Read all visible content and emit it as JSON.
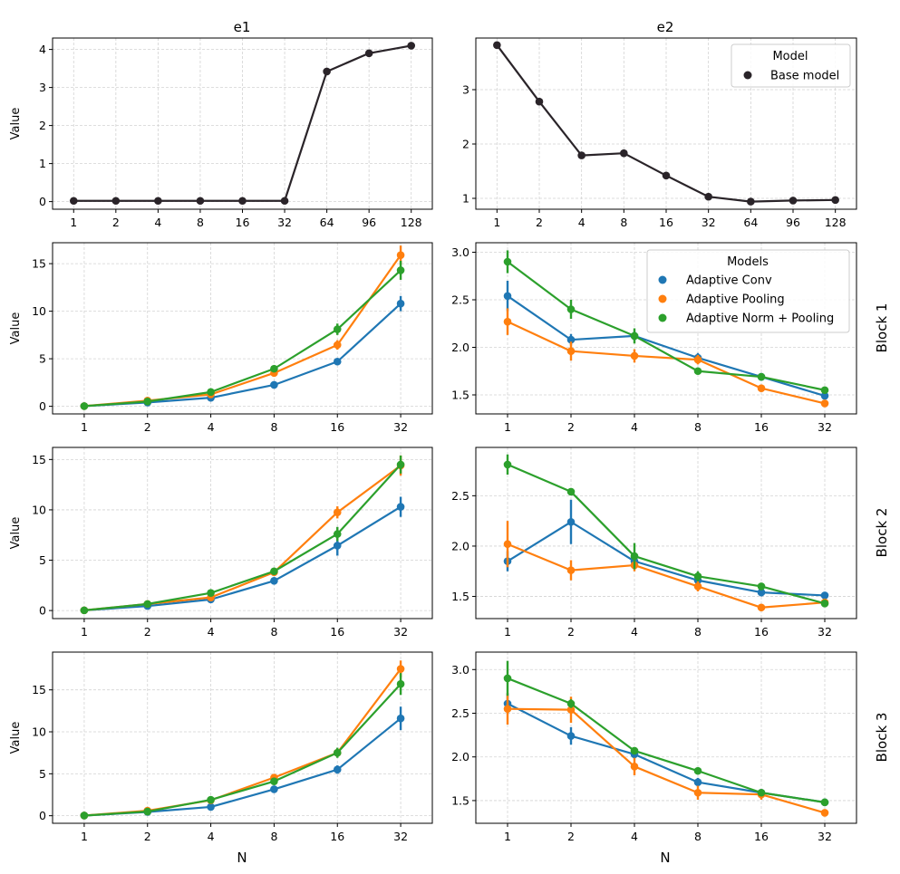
{
  "colors": {
    "base": "#2a2429",
    "adaptive_conv": "#1f77b4",
    "adaptive_pooling": "#ff7f0e",
    "adaptive_norm_pooling": "#2ca02c"
  },
  "figure": {
    "col_titles": [
      "e1",
      "e2"
    ],
    "row_labels": [
      "Block 1",
      "Block 2",
      "Block 3"
    ],
    "xlabel": "N",
    "ylabel": "Value"
  },
  "chart_data": [
    {
      "id": "top-e1",
      "type": "line",
      "title": "e1",
      "xlabel": "",
      "ylabel": "Value",
      "categories": [
        "1",
        "2",
        "4",
        "8",
        "16",
        "32",
        "64",
        "96",
        "128"
      ],
      "ylim": [
        -0.2,
        4.3
      ],
      "yticks": [
        0,
        1,
        2,
        3,
        4
      ],
      "series": [
        {
          "name": "Base model",
          "color": "#2a2429",
          "values": [
            0.02,
            0.02,
            0.02,
            0.02,
            0.02,
            0.02,
            3.42,
            3.9,
            4.1
          ],
          "err": [
            0.02,
            0.02,
            0.02,
            0.02,
            0.02,
            0.02,
            0.05,
            0.05,
            0.04
          ]
        }
      ]
    },
    {
      "id": "top-e2",
      "type": "line",
      "title": "e2",
      "xlabel": "",
      "ylabel": "",
      "categories": [
        "1",
        "2",
        "4",
        "8",
        "16",
        "32",
        "64",
        "96",
        "128"
      ],
      "ylim": [
        0.8,
        3.95
      ],
      "yticks": [
        1,
        2,
        3
      ],
      "legend": {
        "title": "Model",
        "position": "top-right"
      },
      "series": [
        {
          "name": "Base model",
          "color": "#2a2429",
          "values": [
            3.82,
            2.78,
            1.79,
            1.83,
            1.42,
            1.03,
            0.94,
            0.96,
            0.97
          ],
          "err": [
            0.04,
            0.04,
            0.03,
            0.03,
            0.03,
            0.03,
            0.03,
            0.03,
            0.03
          ]
        }
      ]
    },
    {
      "id": "block1-e1",
      "type": "line",
      "xlabel": "",
      "ylabel": "Value",
      "categories": [
        "1",
        "2",
        "4",
        "8",
        "16",
        "32"
      ],
      "ylim": [
        -0.8,
        17.2
      ],
      "yticks": [
        0,
        5,
        10,
        15
      ],
      "series": [
        {
          "name": "Adaptive Conv",
          "color": "#1f77b4",
          "values": [
            0.02,
            0.4,
            0.9,
            2.25,
            4.7,
            10.8
          ],
          "err": [
            0.02,
            0.05,
            0.1,
            0.2,
            0.3,
            0.8
          ]
        },
        {
          "name": "Adaptive Pooling",
          "color": "#ff7f0e",
          "values": [
            0.02,
            0.6,
            1.25,
            3.5,
            6.45,
            15.9
          ],
          "err": [
            0.02,
            0.05,
            0.15,
            0.3,
            0.5,
            1.0
          ]
        },
        {
          "name": "Adaptive Norm + Pooling",
          "color": "#2ca02c",
          "values": [
            0.02,
            0.5,
            1.5,
            3.95,
            8.1,
            14.3
          ],
          "err": [
            0.02,
            0.05,
            0.15,
            0.3,
            0.6,
            1.0
          ]
        }
      ]
    },
    {
      "id": "block1-e2",
      "type": "line",
      "xlabel": "",
      "ylabel": "",
      "categories": [
        "1",
        "2",
        "4",
        "8",
        "16",
        "32"
      ],
      "ylim": [
        1.3,
        3.1
      ],
      "yticks": [
        1.5,
        2.0,
        2.5,
        3.0
      ],
      "ytick_labels": [
        "1.5",
        "2.0",
        "2.5",
        "3.0"
      ],
      "legend": {
        "title": "Models",
        "position": "top-right"
      },
      "series": [
        {
          "name": "Adaptive Conv",
          "color": "#1f77b4",
          "values": [
            2.54,
            2.08,
            2.12,
            1.89,
            1.69,
            1.49
          ],
          "err": [
            0.16,
            0.06,
            0.05,
            0.05,
            0.04,
            0.03
          ]
        },
        {
          "name": "Adaptive Pooling",
          "color": "#ff7f0e",
          "values": [
            2.27,
            1.96,
            1.91,
            1.87,
            1.57,
            1.41
          ],
          "err": [
            0.14,
            0.1,
            0.07,
            0.05,
            0.03,
            0.03
          ]
        },
        {
          "name": "Adaptive Norm + Pooling",
          "color": "#2ca02c",
          "values": [
            2.9,
            2.4,
            2.12,
            1.75,
            1.69,
            1.55
          ],
          "err": [
            0.12,
            0.1,
            0.08,
            0.03,
            0.03,
            0.02
          ]
        }
      ]
    },
    {
      "id": "block2-e1",
      "type": "line",
      "xlabel": "",
      "ylabel": "Value",
      "categories": [
        "1",
        "2",
        "4",
        "8",
        "16",
        "32"
      ],
      "ylim": [
        -0.8,
        16.2
      ],
      "yticks": [
        0,
        5,
        10,
        15
      ],
      "series": [
        {
          "name": "Adaptive Conv",
          "color": "#1f77b4",
          "values": [
            0.02,
            0.45,
            1.1,
            2.95,
            6.45,
            10.3
          ],
          "err": [
            0.02,
            0.05,
            0.1,
            0.2,
            1.0,
            1.0
          ]
        },
        {
          "name": "Adaptive Pooling",
          "color": "#ff7f0e",
          "values": [
            0.02,
            0.65,
            1.3,
            3.8,
            9.75,
            14.4
          ],
          "err": [
            0.02,
            0.05,
            0.15,
            0.3,
            0.6,
            1.0
          ]
        },
        {
          "name": "Adaptive Norm + Pooling",
          "color": "#2ca02c",
          "values": [
            0.02,
            0.65,
            1.75,
            3.9,
            7.6,
            14.5
          ],
          "err": [
            0.02,
            0.05,
            0.15,
            0.3,
            0.7,
            0.9
          ]
        }
      ]
    },
    {
      "id": "block2-e2",
      "type": "line",
      "xlabel": "",
      "ylabel": "",
      "categories": [
        "1",
        "2",
        "4",
        "8",
        "16",
        "32"
      ],
      "ylim": [
        1.28,
        2.98
      ],
      "yticks": [
        1.5,
        2.0,
        2.5
      ],
      "ytick_labels": [
        "1.5",
        "2.0",
        "2.5"
      ],
      "series": [
        {
          "name": "Adaptive Conv",
          "color": "#1f77b4",
          "values": [
            1.85,
            2.24,
            1.85,
            1.66,
            1.54,
            1.51
          ],
          "err": [
            0.1,
            0.22,
            0.08,
            0.05,
            0.04,
            0.02
          ]
        },
        {
          "name": "Adaptive Pooling",
          "color": "#ff7f0e",
          "values": [
            2.02,
            1.76,
            1.81,
            1.6,
            1.39,
            1.44
          ],
          "err": [
            0.23,
            0.1,
            0.06,
            0.05,
            0.03,
            0.02
          ]
        },
        {
          "name": "Adaptive Norm + Pooling",
          "color": "#2ca02c",
          "values": [
            2.81,
            2.54,
            1.9,
            1.7,
            1.6,
            1.43
          ],
          "err": [
            0.1,
            0.03,
            0.13,
            0.05,
            0.03,
            0.03
          ]
        }
      ]
    },
    {
      "id": "block3-e1",
      "type": "line",
      "xlabel": "N",
      "ylabel": "Value",
      "categories": [
        "1",
        "2",
        "4",
        "8",
        "16",
        "32"
      ],
      "ylim": [
        -0.9,
        19.5
      ],
      "yticks": [
        0,
        5,
        10,
        15
      ],
      "series": [
        {
          "name": "Adaptive Conv",
          "color": "#1f77b4",
          "values": [
            0.02,
            0.45,
            1.05,
            3.15,
            5.5,
            11.6
          ],
          "err": [
            0.02,
            0.05,
            0.1,
            0.3,
            0.5,
            1.4
          ]
        },
        {
          "name": "Adaptive Pooling",
          "color": "#ff7f0e",
          "values": [
            0.02,
            0.6,
            1.85,
            4.55,
            7.5,
            17.5
          ],
          "err": [
            0.02,
            0.05,
            0.15,
            0.3,
            0.5,
            1.0
          ]
        },
        {
          "name": "Adaptive Norm + Pooling",
          "color": "#2ca02c",
          "values": [
            0.02,
            0.5,
            1.9,
            4.1,
            7.5,
            15.7
          ],
          "err": [
            0.02,
            0.05,
            0.15,
            0.3,
            0.6,
            1.3
          ]
        }
      ]
    },
    {
      "id": "block3-e2",
      "type": "line",
      "xlabel": "N",
      "ylabel": "",
      "categories": [
        "1",
        "2",
        "4",
        "8",
        "16",
        "32"
      ],
      "ylim": [
        1.24,
        3.2
      ],
      "yticks": [
        1.5,
        2.0,
        2.5,
        3.0
      ],
      "ytick_labels": [
        "1.5",
        "2.0",
        "2.5",
        "3.0"
      ],
      "series": [
        {
          "name": "Adaptive Conv",
          "color": "#1f77b4",
          "values": [
            2.61,
            2.24,
            2.03,
            1.71,
            1.59,
            1.48
          ],
          "err": [
            0.12,
            0.1,
            0.05,
            0.05,
            0.03,
            0.03
          ]
        },
        {
          "name": "Adaptive Pooling",
          "color": "#ff7f0e",
          "values": [
            2.55,
            2.54,
            1.89,
            1.59,
            1.57,
            1.36
          ],
          "err": [
            0.18,
            0.15,
            0.1,
            0.08,
            0.06,
            0.03
          ]
        },
        {
          "name": "Adaptive Norm + Pooling",
          "color": "#2ca02c",
          "values": [
            2.9,
            2.61,
            2.07,
            1.84,
            1.59,
            1.48
          ],
          "err": [
            0.2,
            0.05,
            0.04,
            0.03,
            0.03,
            0.03
          ]
        }
      ]
    }
  ]
}
